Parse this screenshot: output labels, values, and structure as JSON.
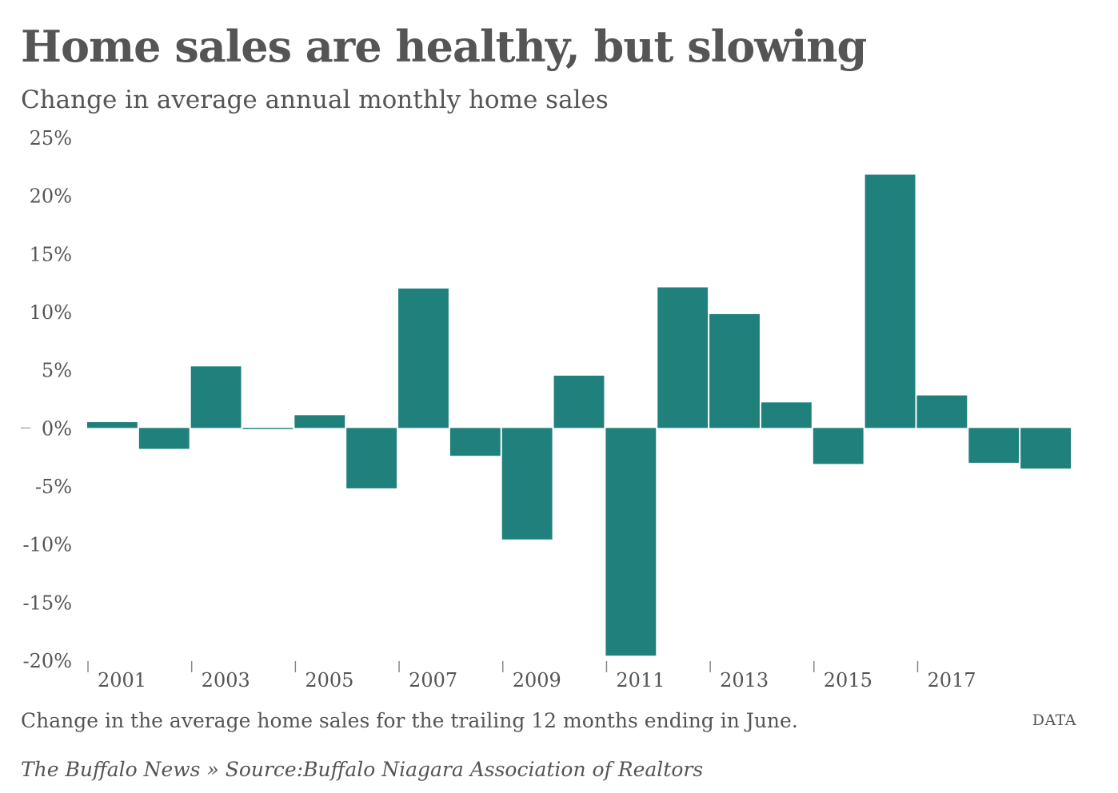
{
  "header": {
    "title": "Home sales are healthy, but slowing",
    "subtitle": "Change in average annual monthly home sales"
  },
  "footer": {
    "note": "Change in the average home sales for the trailing 12 months ending in June.",
    "data_link": "DATA",
    "source": "The Buffalo News » Source:Buffalo Niagara Association of Realtors"
  },
  "colors": {
    "bar": "#20807c",
    "text": "#555555",
    "tick": "#888888"
  },
  "chart_data": {
    "type": "bar",
    "title": "Home sales are healthy, but slowing",
    "subtitle": "Change in average annual monthly home sales",
    "xlabel": "",
    "ylabel": "",
    "categories": [
      2001,
      2002,
      2003,
      2004,
      2005,
      2006,
      2007,
      2008,
      2009,
      2010,
      2011,
      2012,
      2013,
      2014,
      2015,
      2016,
      2017,
      2018,
      2019
    ],
    "values": [
      0.5,
      -1.8,
      5.3,
      -0.1,
      1.1,
      -5.2,
      12.0,
      -2.4,
      -9.6,
      4.5,
      -19.6,
      12.1,
      9.8,
      2.2,
      -3.1,
      21.8,
      2.8,
      -3.0,
      -3.5
    ],
    "ylim": [
      -20,
      25
    ],
    "yticks": [
      25,
      20,
      15,
      10,
      5,
      0,
      -5,
      -10,
      -15,
      -20
    ],
    "ytick_labels": [
      "25%",
      "20%",
      "15%",
      "10%",
      "5%",
      "0%",
      "-5%",
      "-10%",
      "-15%",
      "-20%"
    ],
    "xtick_labels": [
      "2001",
      "2003",
      "2005",
      "2007",
      "2009",
      "2011",
      "2013",
      "2015",
      "2017"
    ],
    "grid": false,
    "legend": "none"
  }
}
